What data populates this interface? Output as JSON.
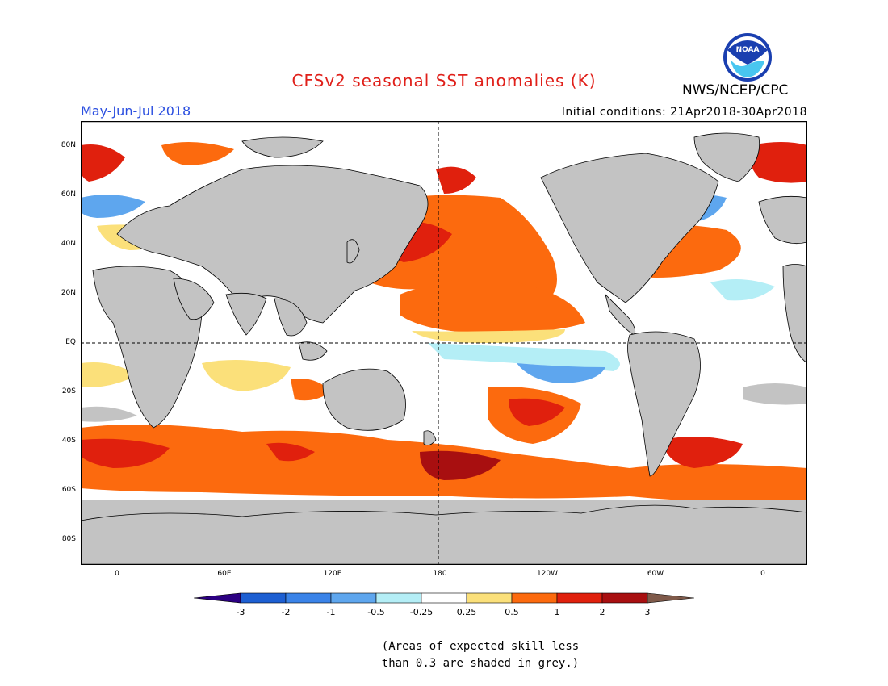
{
  "header": {
    "title": "CFSv2 seasonal SST anomalies (K)",
    "agency": "NWS/NCEP/CPC",
    "logo_text": "NOAA",
    "period": "May-Jun-Jul 2018",
    "initial_conditions": "Initial conditions: 21Apr2018-30Apr2018"
  },
  "map": {
    "lat_labels": [
      "80N",
      "60N",
      "40N",
      "20N",
      "EQ",
      "20S",
      "40S",
      "60S",
      "80S"
    ],
    "lon_labels": [
      "0",
      "60E",
      "120E",
      "180",
      "120W",
      "60W",
      "0"
    ],
    "land_color": "#c3c3c3",
    "grid_line_style": "dashed"
  },
  "colorbar": {
    "ticks": [
      "-3",
      "-2",
      "-1",
      "-0.5",
      "-0.25",
      "0.25",
      "0.5",
      "1",
      "2",
      "3"
    ],
    "colors": [
      "#2c0082",
      "#1d5fd2",
      "#3a83e8",
      "#5ea6ee",
      "#b4eef6",
      "#ffffff",
      "#fbe07a",
      "#fc6a0e",
      "#e0200d",
      "#a80f10",
      "#7f5a4a"
    ]
  },
  "footnote": {
    "line1": "(Areas of expected skill less",
    "line2": "than 0.3 are shaded in grey.)"
  }
}
